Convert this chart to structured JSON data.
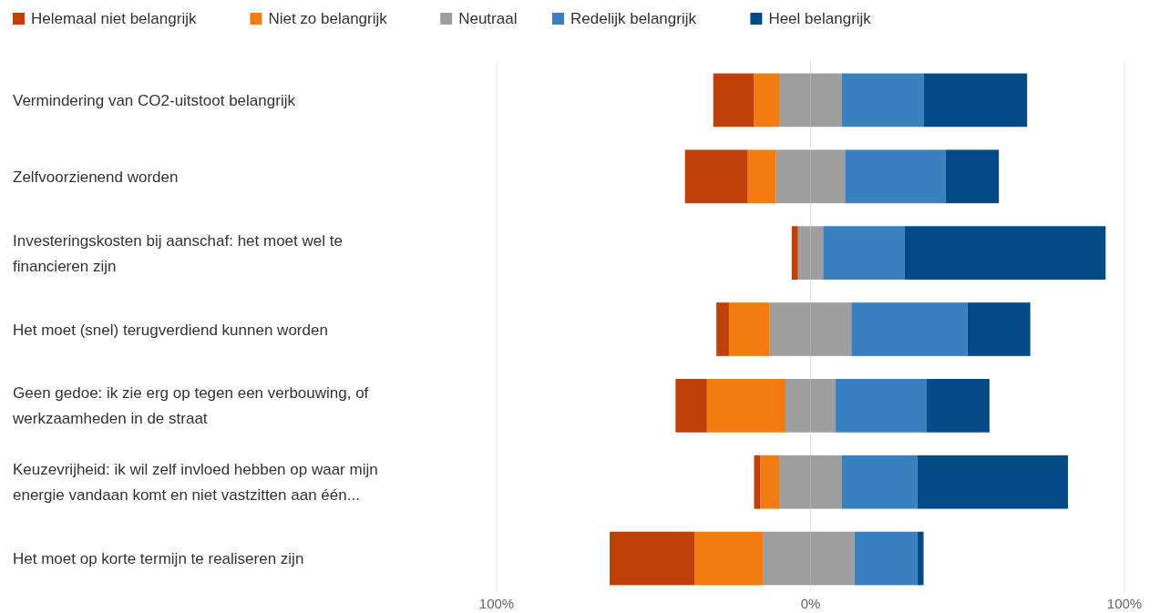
{
  "chart_data": {
    "type": "bar",
    "orientation": "horizontal",
    "stacked": true,
    "categories": [
      "Vermindering van CO2-uitstoot belangrijk",
      "Zelfvoorzienend worden",
      "Investeringskosten bij aanschaf: het moet wel te financieren zijn",
      "Het moet (snel) terugverdiend kunnen worden",
      "Geen gedoe: ik zie erg op tegen een verbouwing, of werkzaamheden in de straat",
      "Keuzevrijheid: ik wil zelf invloed hebben op waar mijn energie vandaan komt en niet vastzitten aan één...",
      "Het moet op korte termijn te realiseren zijn"
    ],
    "series": [
      {
        "name": "Neutraal",
        "color": "#9e9e9e",
        "values": [
          -10,
          -11,
          -4,
          -13,
          -8,
          -10,
          -15
        ]
      },
      {
        "name": "Niet zo belangrijk",
        "color": "#f07c12",
        "values": [
          -8,
          -9,
          0,
          -13,
          -25,
          -6,
          -22
        ]
      },
      {
        "name": "Helemaal niet belangrijk",
        "color": "#c0400a",
        "values": [
          -13,
          -20,
          -2,
          -4,
          -10,
          -2,
          -27
        ]
      },
      {
        "color": "#9e9e9e",
        "values": [
          10,
          11,
          4,
          13,
          8,
          10,
          14
        ]
      },
      {
        "name": "Redelijk belangrijk",
        "color": "#3a80be",
        "values": [
          26,
          32,
          26,
          37,
          29,
          24,
          20
        ]
      },
      {
        "name": "Heel belangrijk",
        "color": "#044a86",
        "values": [
          33,
          17,
          64,
          20,
          20,
          48,
          2
        ]
      }
    ],
    "xlim": [
      -100,
      100
    ],
    "xticks": [
      {
        "value": -100,
        "label": "100%"
      },
      {
        "value": 0,
        "label": "0%"
      },
      {
        "value": 100,
        "label": "100%"
      }
    ],
    "grid": "x",
    "legend": "top left"
  }
}
